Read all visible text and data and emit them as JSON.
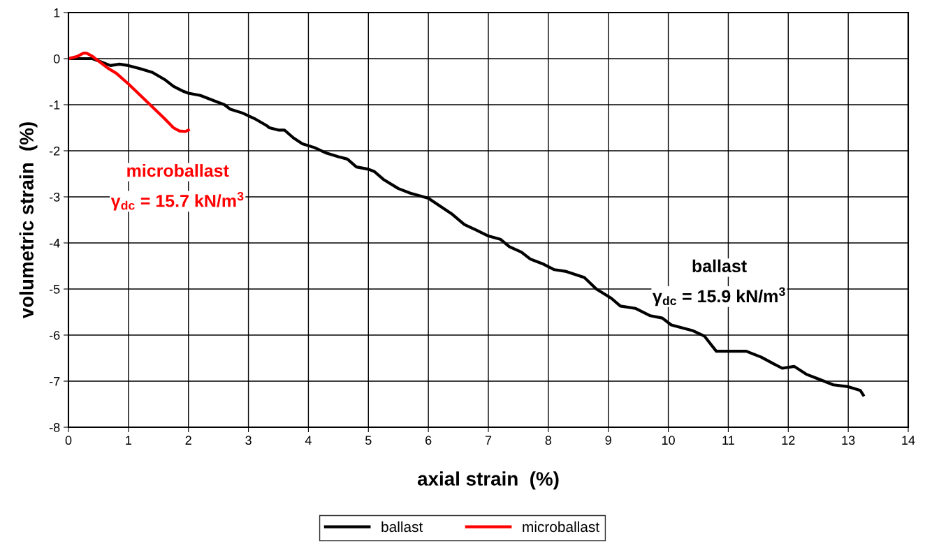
{
  "chart_data": {
    "type": "line",
    "xlabel": "axial strain  (%)",
    "ylabel": "volumetric strain  (%)",
    "xlim": [
      0,
      14
    ],
    "ylim": [
      -8,
      1
    ],
    "xticks": [
      0,
      1,
      2,
      3,
      4,
      5,
      6,
      7,
      8,
      9,
      10,
      11,
      12,
      13,
      14
    ],
    "yticks": [
      -8,
      -7,
      -6,
      -5,
      -4,
      -3,
      -2,
      -1,
      0,
      1
    ],
    "grid": true,
    "legend": "bottom",
    "marker": "none",
    "line_style": "solid",
    "series": [
      {
        "name": "ballast",
        "color": "#000000",
        "x": [
          0,
          0.4,
          0.5,
          0.7,
          0.85,
          1.0,
          1.2,
          1.4,
          1.6,
          1.75,
          1.9,
          2.0,
          2.2,
          2.5,
          2.6,
          2.7,
          2.9,
          3.1,
          3.3,
          3.35,
          3.5,
          3.6,
          3.75,
          3.9,
          4.1,
          4.3,
          4.5,
          4.65,
          4.8,
          5.0,
          5.1,
          5.25,
          5.5,
          5.7,
          6.0,
          6.4,
          6.6,
          6.8,
          7.0,
          7.2,
          7.35,
          7.55,
          7.7,
          7.9,
          8.1,
          8.3,
          8.6,
          8.8,
          9.05,
          9.2,
          9.45,
          9.7,
          9.9,
          10.05,
          10.4,
          10.6,
          10.8,
          11.3,
          11.55,
          11.75,
          11.9,
          12.1,
          12.3,
          12.5,
          12.75,
          13.0,
          13.2,
          13.25
        ],
        "values": [
          0,
          0,
          -0.05,
          -0.15,
          -0.12,
          -0.15,
          -0.22,
          -0.3,
          -0.45,
          -0.6,
          -0.7,
          -0.75,
          -0.8,
          -0.95,
          -1.0,
          -1.1,
          -1.18,
          -1.3,
          -1.45,
          -1.5,
          -1.55,
          -1.55,
          -1.72,
          -1.85,
          -1.93,
          -2.05,
          -2.13,
          -2.18,
          -2.35,
          -2.4,
          -2.45,
          -2.62,
          -2.82,
          -2.92,
          -3.03,
          -3.38,
          -3.6,
          -3.72,
          -3.85,
          -3.92,
          -4.08,
          -4.2,
          -4.35,
          -4.45,
          -4.58,
          -4.62,
          -4.75,
          -5.0,
          -5.2,
          -5.37,
          -5.42,
          -5.58,
          -5.63,
          -5.78,
          -5.9,
          -6.02,
          -6.35,
          -6.35,
          -6.48,
          -6.62,
          -6.72,
          -6.68,
          -6.85,
          -6.95,
          -7.08,
          -7.12,
          -7.2,
          -7.3
        ]
      },
      {
        "name": "microballast",
        "color": "#ff0000",
        "x": [
          0,
          0.15,
          0.25,
          0.3,
          0.4,
          0.5,
          0.65,
          0.8,
          1.0,
          1.2,
          1.4,
          1.6,
          1.75,
          1.85,
          1.95,
          2.0
        ],
        "values": [
          0,
          0.05,
          0.12,
          0.12,
          0.05,
          -0.05,
          -0.2,
          -0.32,
          -0.55,
          -0.8,
          -1.05,
          -1.3,
          -1.5,
          -1.57,
          -1.58,
          -1.55
        ]
      }
    ],
    "annotations": [
      "microballast",
      "γ$_{dc}$ = 15.7 kN/m$^{3}$",
      "ballast",
      "γ$_{dc}$ = 15.9 kN/m$^{3}$"
    ]
  }
}
